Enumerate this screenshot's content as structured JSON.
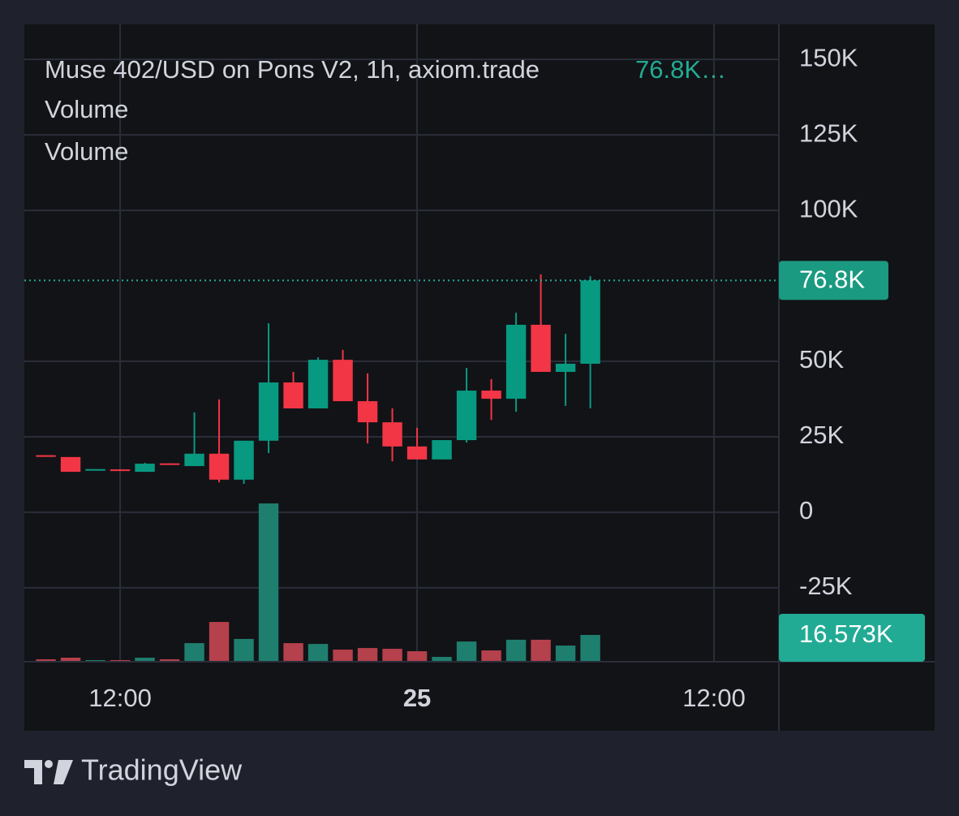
{
  "chart_data": {
    "type": "candlestick",
    "title": "Muse 402/USD on Pons V2, 1h, axiom.trade",
    "legend_value": "76.8K…",
    "indicators": [
      "Volume",
      "Volume"
    ],
    "x": [
      9,
      10,
      11,
      12,
      13,
      14,
      15,
      16,
      17,
      18,
      19,
      20,
      21,
      22,
      23,
      24,
      25,
      26,
      27,
      28,
      29,
      30,
      31
    ],
    "open": [
      18900,
      18300,
      14000,
      14200,
      13400,
      16200,
      15300,
      19400,
      10800,
      23700,
      43000,
      34400,
      50500,
      36800,
      29800,
      21800,
      17500,
      23900,
      40300,
      37600,
      62100,
      46500,
      49200
    ],
    "high": [
      18900,
      18300,
      14300,
      14200,
      16400,
      16200,
      33100,
      37400,
      23700,
      62600,
      46500,
      51300,
      53800,
      46000,
      34400,
      28000,
      23900,
      47800,
      44100,
      66100,
      78800,
      59100,
      78200
    ],
    "low": [
      18600,
      13400,
      14000,
      13800,
      13400,
      15900,
      15300,
      9900,
      9400,
      19600,
      34400,
      34400,
      36800,
      22800,
      16900,
      17500,
      17500,
      23100,
      30600,
      33300,
      46500,
      35200,
      34400
    ],
    "close": [
      18600,
      13400,
      14300,
      13800,
      16100,
      15900,
      19400,
      10800,
      23700,
      43000,
      34400,
      50500,
      36800,
      29800,
      21800,
      17500,
      23900,
      40300,
      37600,
      62100,
      46500,
      49200,
      76800
    ],
    "volume": {
      "axis": "y2",
      "values": [
        1500,
        2500,
        1000,
        1000,
        2500,
        1500,
        11500,
        24600,
        14100,
        97900,
        11500,
        11000,
        7500,
        8500,
        8000,
        6500,
        3000,
        12500,
        7000,
        13600,
        13600,
        10000,
        16573
      ]
    },
    "up_color": "#089981",
    "down_color": "#f23645",
    "volume_up_color": "#1f7f6f",
    "volume_down_color": "#b5414c",
    "xlim": [
      8.13,
      38.62
    ],
    "xticks": [
      {
        "value": 12,
        "label": "12:00"
      },
      {
        "value": 24,
        "label": "25"
      },
      {
        "value": 36,
        "label": "12:00"
      }
    ],
    "ylim": [
      -49500,
      161600
    ],
    "yticks": [
      {
        "value": -25000,
        "label": "-25K"
      },
      0,
      {
        "value": 25000,
        "label": "25K"
      },
      {
        "value": 50000,
        "label": "50K"
      },
      {
        "value": 100000,
        "label": "100K"
      },
      {
        "value": 125000,
        "label": "125K"
      },
      {
        "value": 150000,
        "label": "150K"
      }
    ],
    "y2lim": [
      0,
      394200
    ],
    "last_price": {
      "value": 76800,
      "label": "76.8K"
    },
    "last_volume": {
      "value": 16573,
      "label": "16.573K"
    },
    "grid": true
  },
  "footer": {
    "brand": "TradingView"
  }
}
